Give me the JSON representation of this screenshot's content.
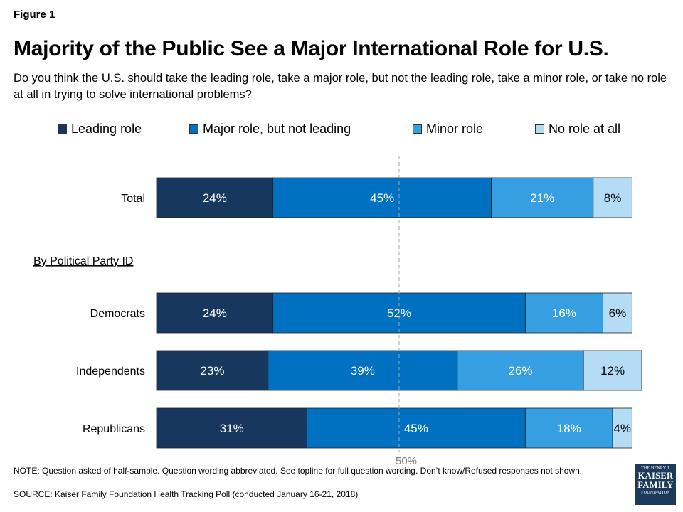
{
  "figure_label": "Figure 1",
  "logo": {
    "line1": "THE HENRY J.",
    "line2": "KAISER",
    "line3": "FAMILY",
    "line4": "FOUNDATION"
  },
  "note": "NOTE: Question asked of half-sample. Question wording abbreviated. See topline for full question wording. Don’t know/Refused responses not shown.",
  "source": "SOURCE: Kaiser Family Foundation Health Tracking Poll (conducted January 16-21, 2018)",
  "chart_data": {
    "type": "bar",
    "orientation": "horizontal",
    "stacked": true,
    "title": "Majority of the Public See a Major International Role for U.S.",
    "subtitle": "Do you think the U.S. should take the leading role, take a major role, but not the leading role, take a minor role, or take no role at all in trying to solve international problems?",
    "categories": [
      "Total",
      "Democrats",
      "Independents",
      "Republicans"
    ],
    "group_label": "By Political Party ID",
    "series": [
      {
        "name": "Leading role",
        "color": "#17375e",
        "values": [
          24,
          24,
          23,
          31
        ]
      },
      {
        "name": "Major role, but not leading",
        "color": "#0070c0",
        "values": [
          45,
          52,
          39,
          45
        ]
      },
      {
        "name": "Minor role",
        "color": "#359fe2",
        "values": [
          21,
          16,
          26,
          18
        ]
      },
      {
        "name": "No role at all",
        "color": "#b4dcf5",
        "values": [
          8,
          6,
          12,
          4
        ]
      }
    ],
    "value_suffix": "%",
    "xlim": [
      0,
      100
    ],
    "reference_line": {
      "value": 50,
      "label": "50%"
    },
    "legend_position": "top",
    "grid": false
  }
}
